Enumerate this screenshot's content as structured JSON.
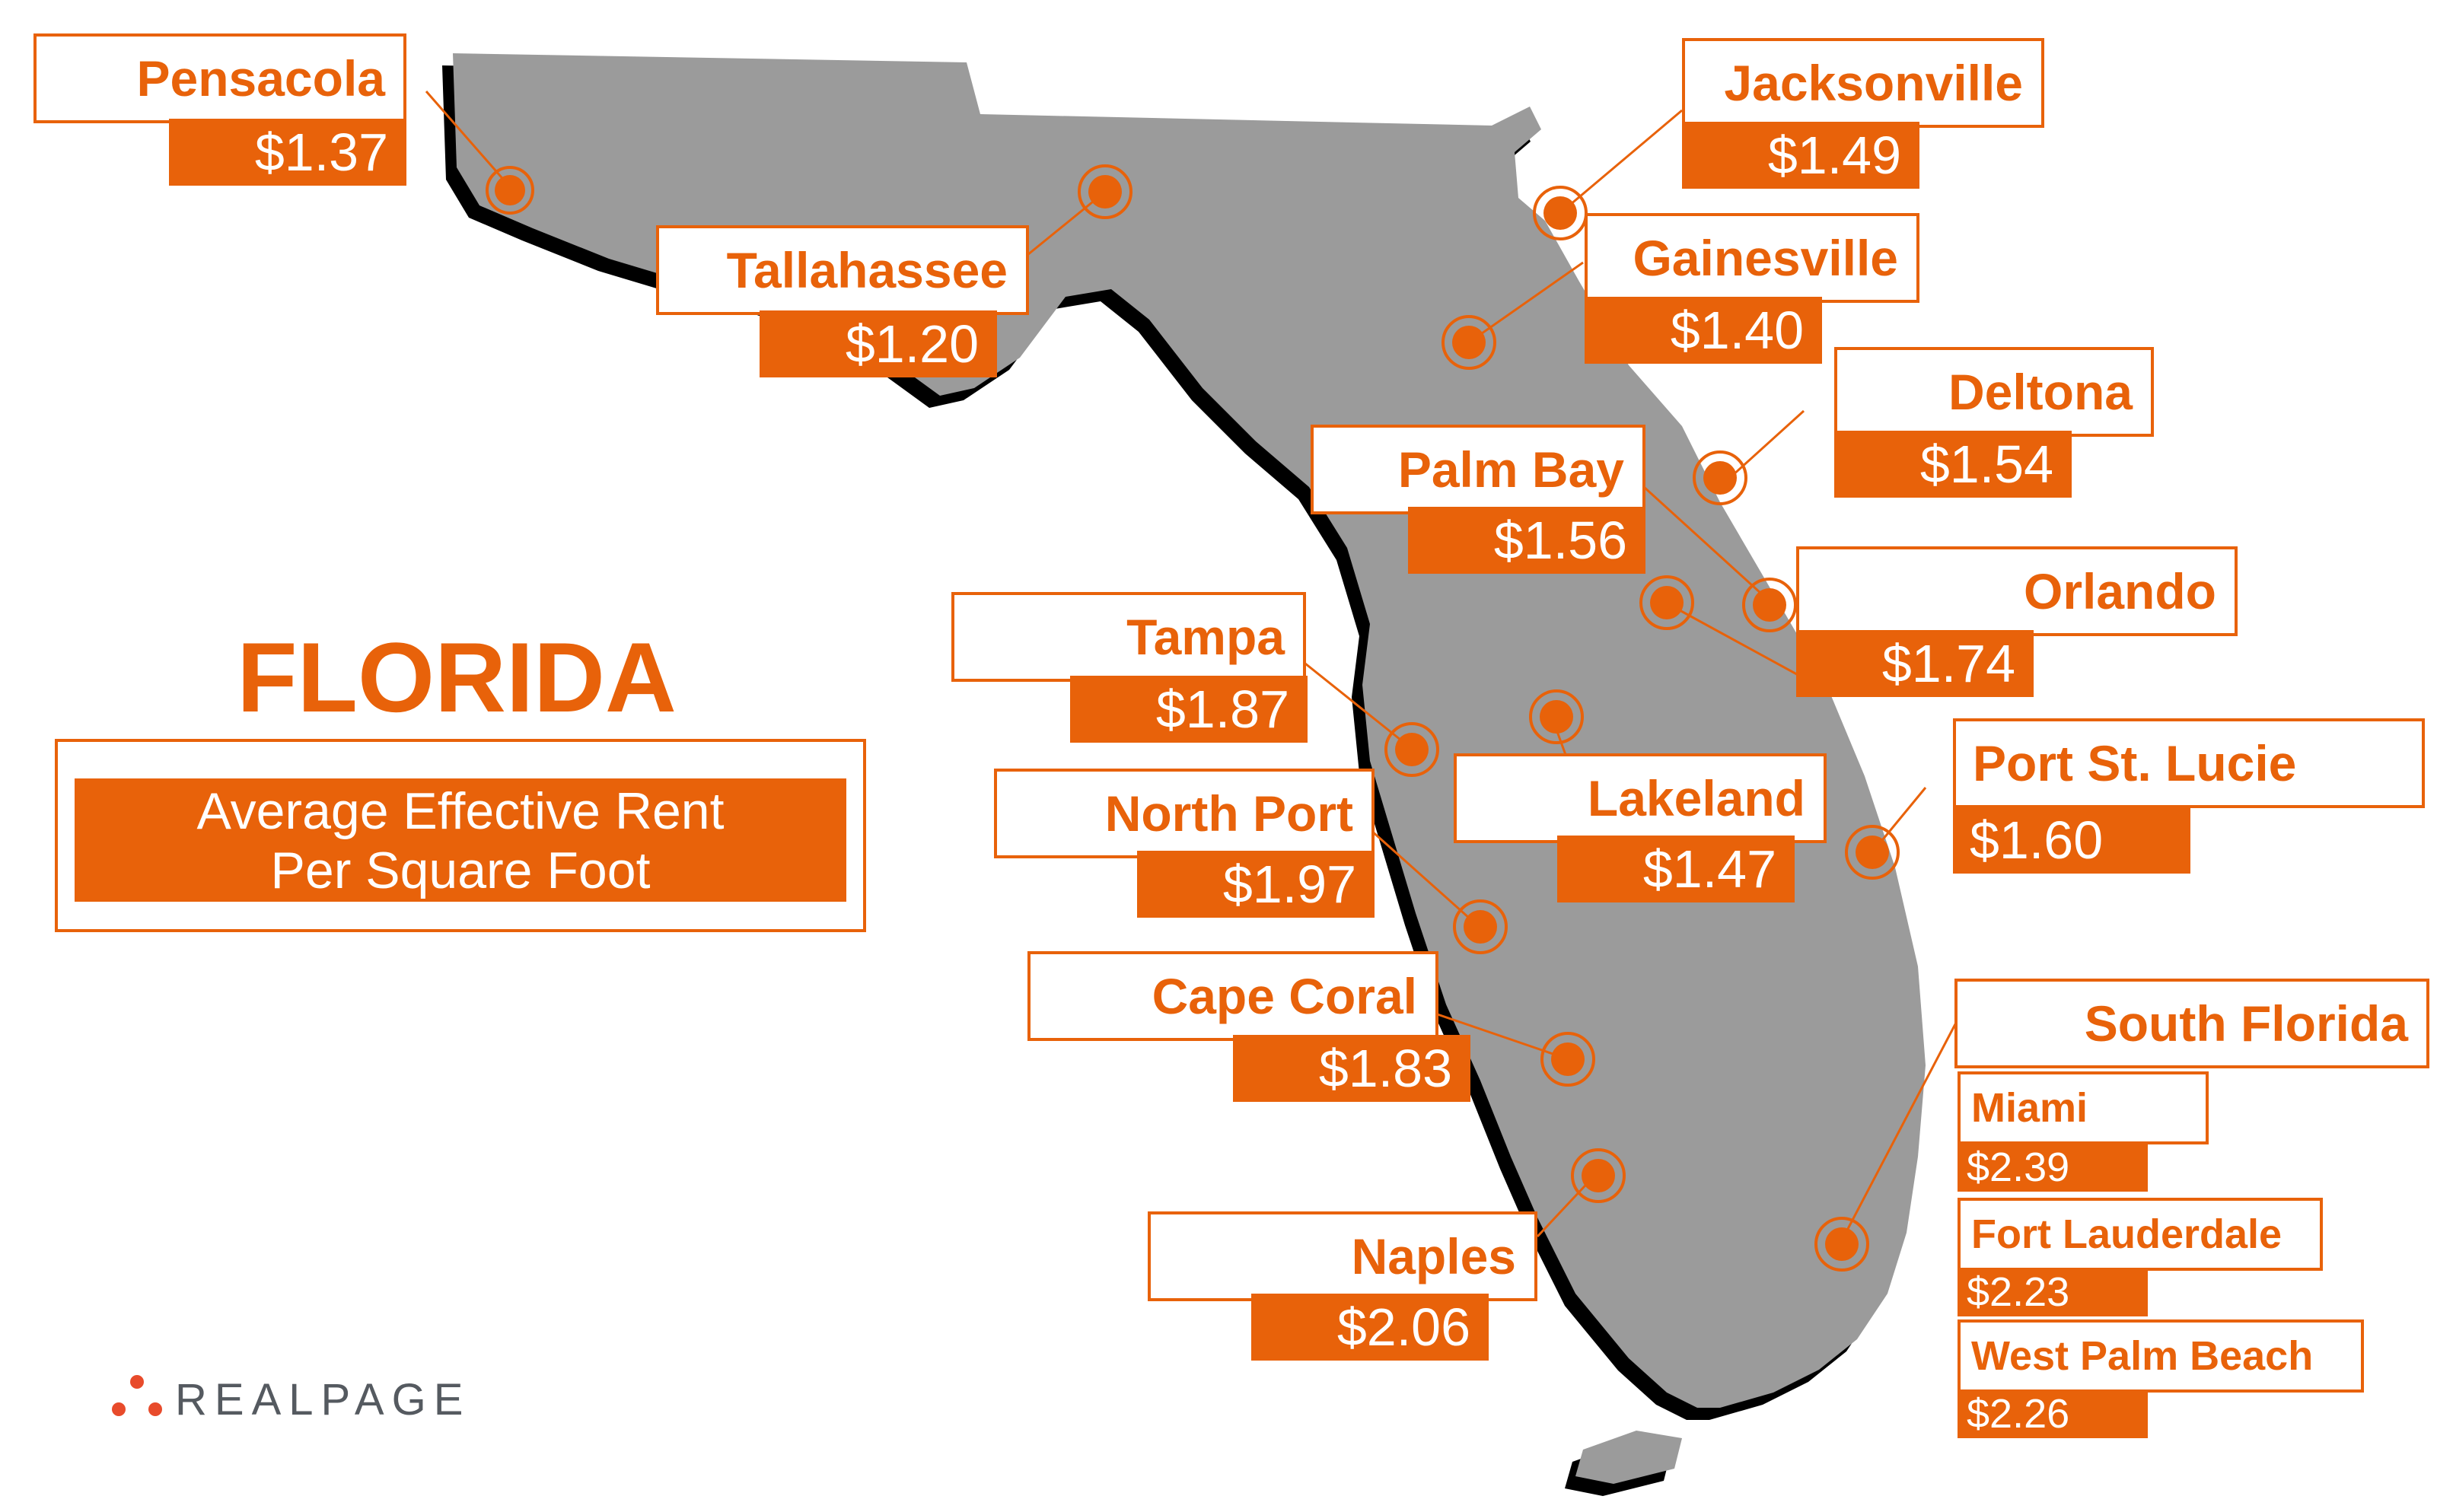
{
  "title": "FLORIDA",
  "subtitle_line1": "Average Effective Rent",
  "subtitle_line2": "Per Square Foot",
  "brand": "REALPAGE",
  "colors": {
    "accent": "#e8620a",
    "land": "#9b9b9b",
    "shadow": "#000000"
  },
  "icons": {
    "marker": "location-dot-icon",
    "logo": "realpage-dots-icon"
  },
  "cities": {
    "pensacola": {
      "name": "Pensacola",
      "value": "$1.37"
    },
    "tallahassee": {
      "name": "Tallahassee",
      "value": "$1.20"
    },
    "jacksonville": {
      "name": "Jacksonville",
      "value": "$1.49"
    },
    "gainesville": {
      "name": "Gainesville",
      "value": "$1.40"
    },
    "deltona": {
      "name": "Deltona",
      "value": "$1.54"
    },
    "palm_bay": {
      "name": "Palm Bay",
      "value": "$1.56"
    },
    "orlando": {
      "name": "Orlando",
      "value": "$1.74"
    },
    "tampa": {
      "name": "Tampa",
      "value": "$1.87"
    },
    "lakeland": {
      "name": "Lakeland",
      "value": "$1.47"
    },
    "port_st_lucie": {
      "name": "Port St. Lucie",
      "value": "$1.60"
    },
    "north_port": {
      "name": "North Port",
      "value": "$1.97"
    },
    "cape_coral": {
      "name": "Cape Coral",
      "value": "$1.83"
    },
    "naples": {
      "name": "Naples",
      "value": "$2.06"
    }
  },
  "south_florida": {
    "heading": "South Florida",
    "miami": {
      "name": "Miami",
      "value": "$2.39"
    },
    "fort_lauderdale": {
      "name": "Fort Lauderdale",
      "value": "$2.23"
    },
    "west_palm_beach": {
      "name": "West Palm Beach",
      "value": "$2.26"
    }
  }
}
